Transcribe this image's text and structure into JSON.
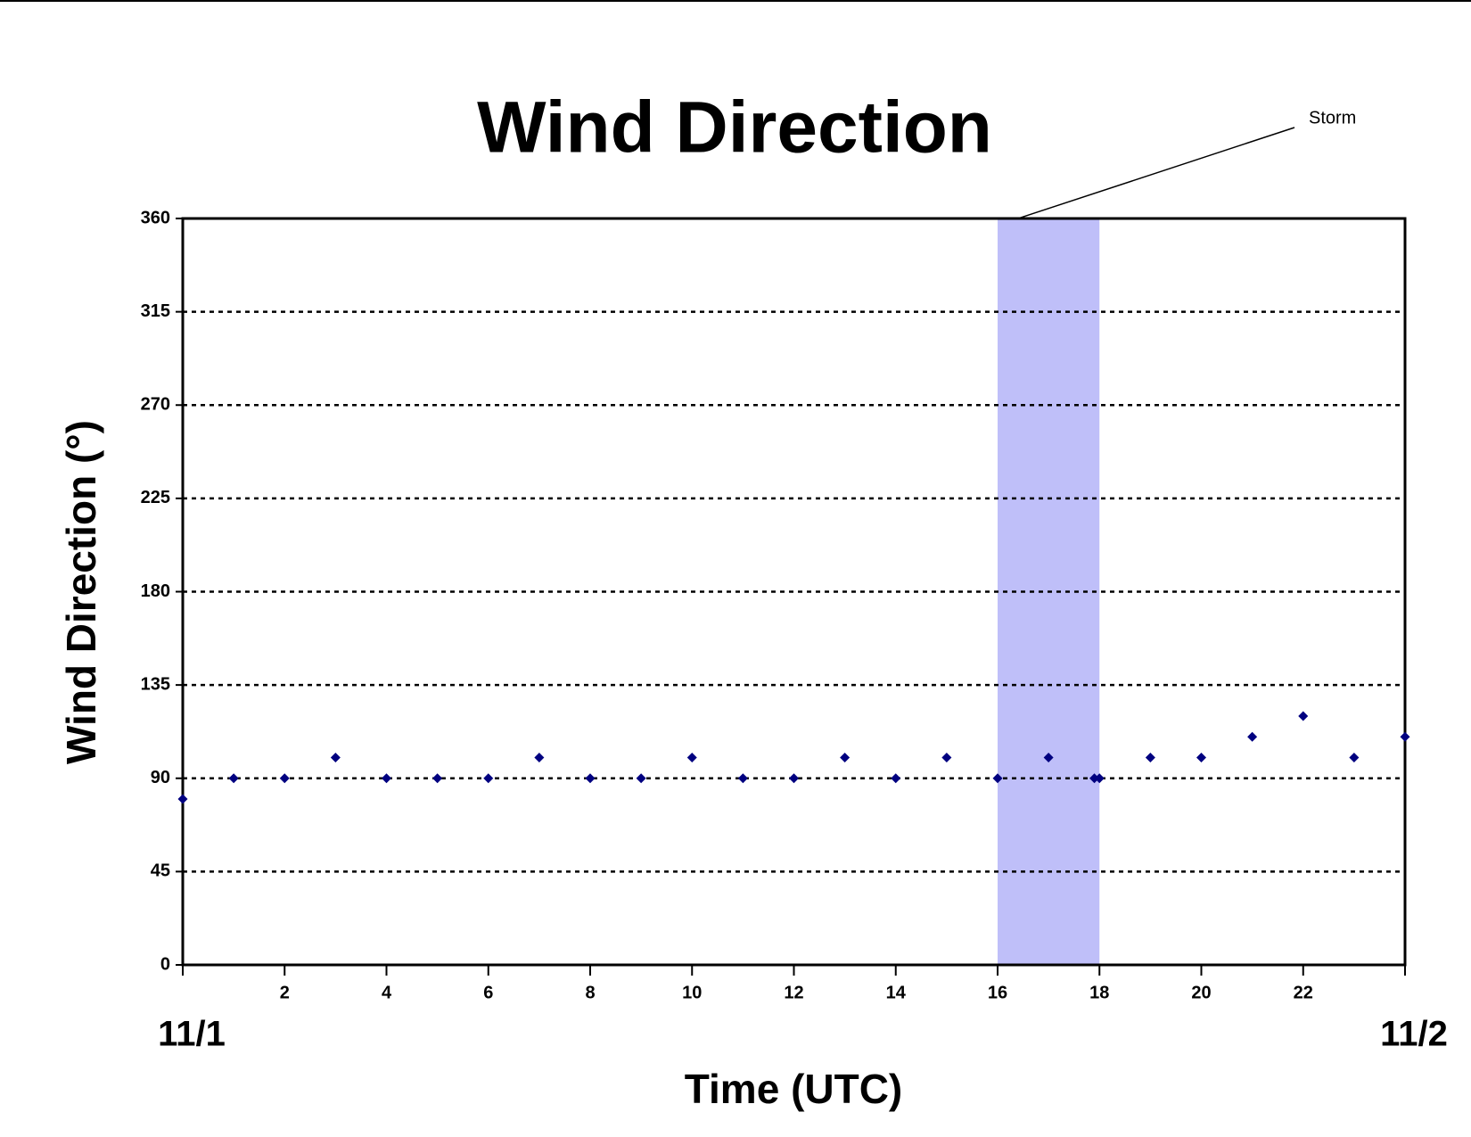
{
  "chart_data": {
    "type": "scatter",
    "title": "Wind Direction",
    "x_label": "Time (UTC)",
    "y_label": "Wind Direction (°)",
    "x": [
      0,
      1,
      2,
      3,
      4,
      5,
      6,
      7,
      8,
      9,
      10,
      11,
      12,
      13,
      14,
      15,
      16,
      17,
      17.9,
      18,
      19,
      20,
      21,
      22,
      23,
      24
    ],
    "values": [
      80,
      90,
      90,
      100,
      90,
      90,
      90,
      100,
      90,
      90,
      100,
      90,
      90,
      100,
      90,
      100,
      90,
      100,
      90,
      90,
      100,
      100,
      110,
      120,
      100,
      110
    ],
    "color": "#000080",
    "xlim": [
      0,
      24
    ],
    "xticks": [
      {
        "value": 0,
        "label": "11/1"
      },
      2,
      4,
      6,
      8,
      10,
      12,
      14,
      16,
      18,
      20,
      22,
      {
        "value": 24,
        "label": "11/2"
      }
    ],
    "ylim": [
      0,
      360
    ],
    "yticks": [
      0,
      45,
      90,
      135,
      180,
      225,
      270,
      315,
      360
    ],
    "grid": true,
    "shaded_region": {
      "x": [
        16,
        18
      ],
      "color": "#bfbff9",
      "label": "Storm"
    }
  }
}
